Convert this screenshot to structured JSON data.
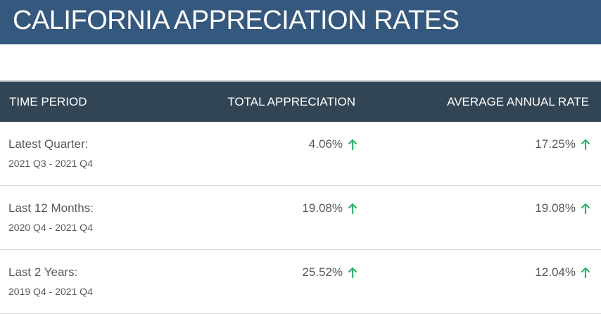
{
  "header": {
    "title": "CALIFORNIA APPRECIATION RATES"
  },
  "table": {
    "columns": [
      "TIME PERIOD",
      "TOTAL APPRECIATION",
      "AVERAGE ANNUAL RATE"
    ],
    "rows": [
      {
        "period": "Latest Quarter:",
        "range": "2021 Q3 - 2021 Q4",
        "total": "4.06%",
        "total_trend": "up-arrow-icon",
        "annual": "17.25%",
        "annual_trend": "up-arrow-icon"
      },
      {
        "period": "Last 12 Months:",
        "range": "2020 Q4 - 2021 Q4",
        "total": "19.08%",
        "total_trend": "up-arrow-icon",
        "annual": "19.08%",
        "annual_trend": "up-arrow-icon"
      },
      {
        "period": "Last 2 Years:",
        "range": "2019 Q4 - 2021 Q4",
        "total": "25.52%",
        "total_trend": "up-arrow-icon",
        "annual": "12.04%",
        "annual_trend": "up-arrow-icon"
      }
    ]
  },
  "colors": {
    "title_bar": "#35587f",
    "table_header": "#324554",
    "trend_up": "#2db36f",
    "text": "#555a60"
  }
}
